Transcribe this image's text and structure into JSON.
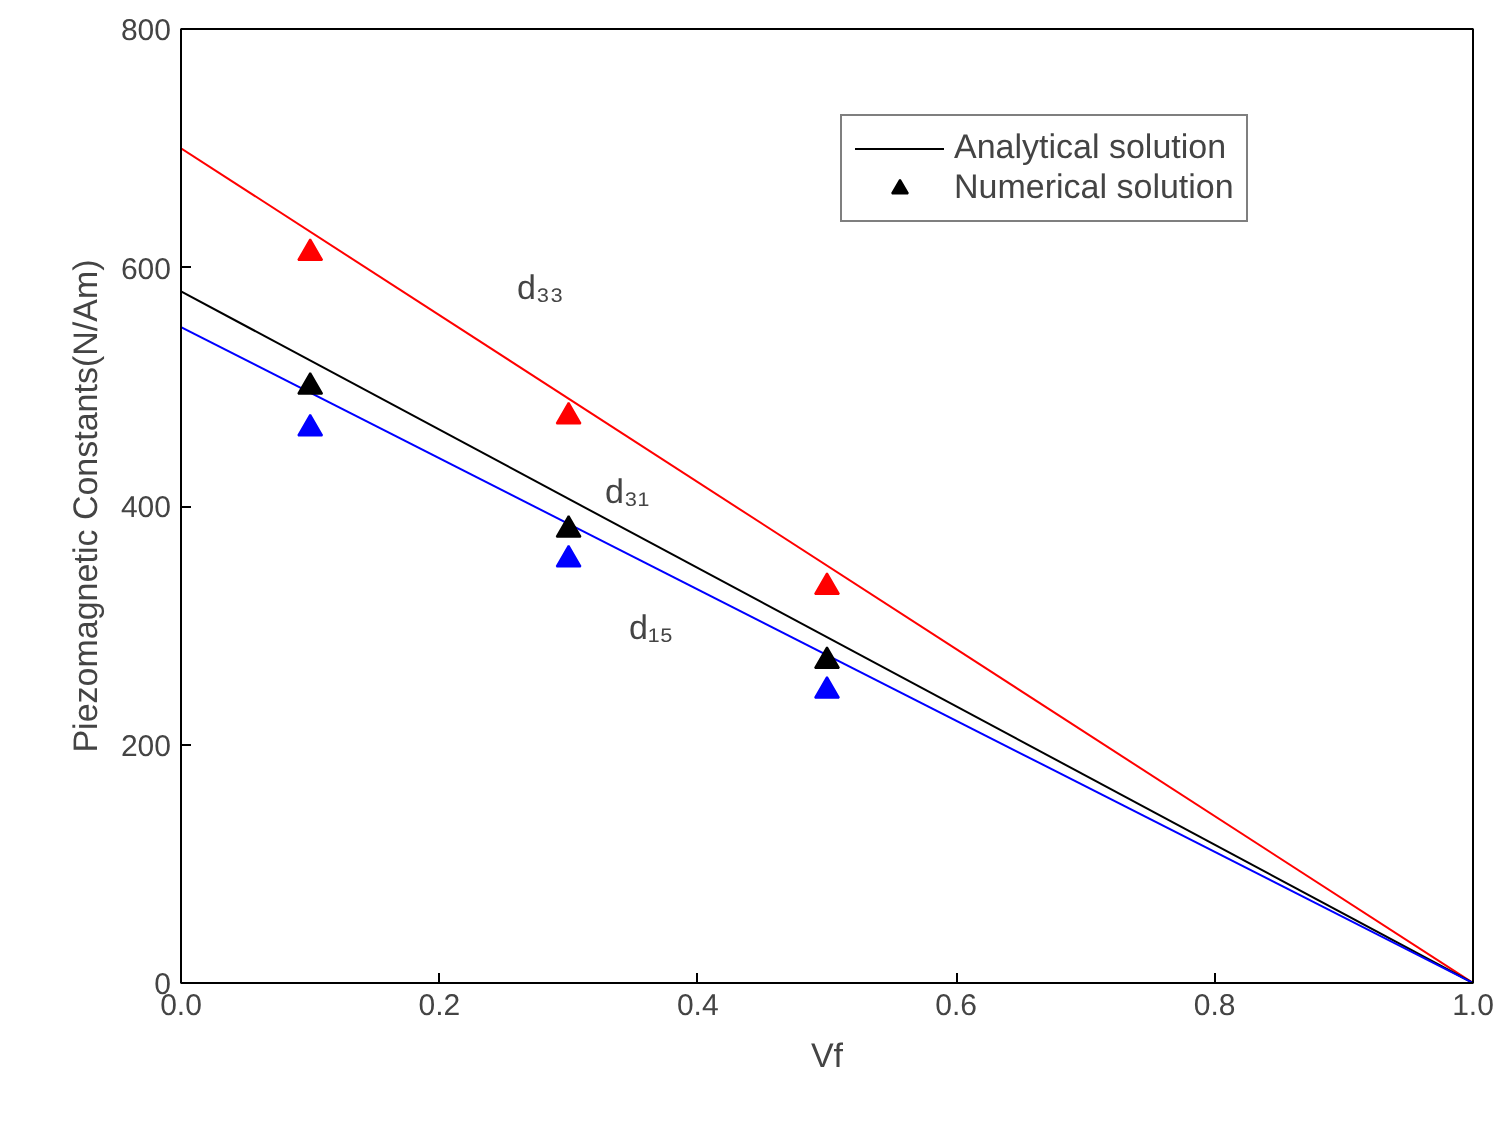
{
  "chart_data": {
    "type": "line",
    "xlabel": "Vf",
    "ylabel": "Piezomagnetic Constants(N/Am)",
    "xlim": [
      0,
      1
    ],
    "ylim": [
      0,
      800
    ],
    "xticks": [
      {
        "value": 0,
        "label": "0.0"
      },
      {
        "value": 0.2,
        "label": "0.2"
      },
      {
        "value": 0.4,
        "label": "0.4"
      },
      {
        "value": 0.6,
        "label": "0.6"
      },
      {
        "value": 0.8,
        "label": "0.8"
      },
      {
        "value": 1,
        "label": "1.0"
      }
    ],
    "yticks": [
      0,
      200,
      400,
      600,
      800
    ],
    "grid": false,
    "legend": "top right",
    "line_style": "solid",
    "series": [
      {
        "color": "#ff0000",
        "x": [
          0,
          1
        ],
        "values": [
          700,
          0
        ]
      },
      {
        "name": "Analytical solution",
        "color": "#000000",
        "x": [
          0,
          1
        ],
        "values": [
          580,
          0
        ]
      },
      {
        "color": "#0000ff",
        "x": [
          0,
          1
        ],
        "values": [
          550,
          0
        ]
      },
      {
        "type": "scatter",
        "marker": "triangle",
        "color": "#ff0000",
        "x": [
          0.1,
          0.3,
          0.5
        ],
        "values": [
          612,
          475,
          332
        ]
      },
      {
        "type": "scatter",
        "marker": "triangle",
        "name": "Numerical solution",
        "color": "#000000",
        "x": [
          0.1,
          0.3,
          0.5
        ],
        "values": [
          500,
          380,
          270
        ]
      },
      {
        "type": "scatter",
        "marker": "triangle",
        "color": "#0000ff",
        "x": [
          0.1,
          0.3,
          0.5
        ],
        "values": [
          465,
          355,
          245
        ]
      }
    ],
    "annotations": [
      "d₃₃",
      "d₃₁",
      "d₁₅"
    ]
  }
}
